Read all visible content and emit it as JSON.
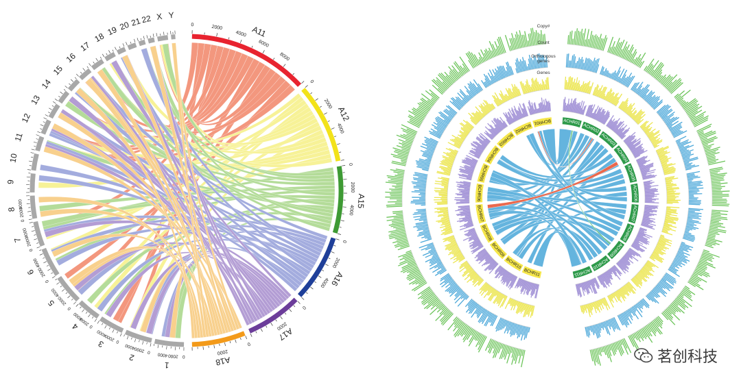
{
  "left_figure": {
    "target_segments": [
      {
        "label": "A11",
        "color": "#e8232f",
        "ribbon": "#f07a5b",
        "ticks": [
          "0",
          "2000",
          "4000",
          "6000",
          "8000"
        ]
      },
      {
        "label": "A12",
        "color": "#f2e21a",
        "ribbon": "#f5ef7a",
        "ticks": [
          "0",
          "2000",
          "4000"
        ]
      },
      {
        "label": "A15",
        "color": "#3e9a34",
        "ribbon": "#9fd37d",
        "ticks": [
          "0",
          "2000",
          "4000"
        ]
      },
      {
        "label": "A16",
        "color": "#1f3f99",
        "ribbon": "#8a95d6",
        "ticks": [
          "0",
          "2000",
          "4000"
        ]
      },
      {
        "label": "A17",
        "color": "#6c3d9a",
        "ribbon": "#9e82c9",
        "ticks": [
          "0",
          "2000"
        ]
      },
      {
        "label": "A18",
        "color": "#f39a1a",
        "ribbon": "#f7c36e",
        "ticks": [
          "0",
          "2000"
        ]
      }
    ],
    "source_chromosomes": [
      "1",
      "2",
      "3",
      "4",
      "5",
      "6",
      "7",
      "8",
      "9",
      "10",
      "11",
      "12",
      "13",
      "14",
      "15",
      "16",
      "17",
      "18",
      "19",
      "20",
      "21",
      "22",
      "X",
      "Y"
    ],
    "source_ticks": [
      "0",
      "2000",
      "4000"
    ]
  },
  "right_figure": {
    "track_labels": [
      "Copy#",
      "Count",
      "Orthologous genes",
      "Genes"
    ],
    "a_chromosomes": [
      "ACHR01",
      "ACHR02",
      "ACHR03",
      "ACHR04",
      "ACHR05",
      "ACHR06",
      "ACHR07",
      "ACHR08",
      "ACHR09",
      "ACHR10",
      "ACHR11"
    ],
    "b_chromosomes": [
      "BCHR01",
      "BCHR02",
      "BCHR03",
      "BCHR04",
      "BCHR05",
      "BCHR06",
      "BCHR07",
      "BCHR08",
      "BCHR09",
      "BCHR10",
      "BCHR11"
    ],
    "colors": {
      "a_band": "#2e9a4a",
      "b_band": "#f5e64a",
      "link_main": "#4aa7d9",
      "link_highlight_red": "#e8502f",
      "link_highlight_green": "#3fb25a",
      "track_green": "#6cc45a",
      "track_blue": "#4aa7d9",
      "track_yellow": "#ece652",
      "track_purple": "#a697d8"
    }
  },
  "watermark": {
    "text": "茗创科技",
    "icon": "wechat-icon"
  }
}
